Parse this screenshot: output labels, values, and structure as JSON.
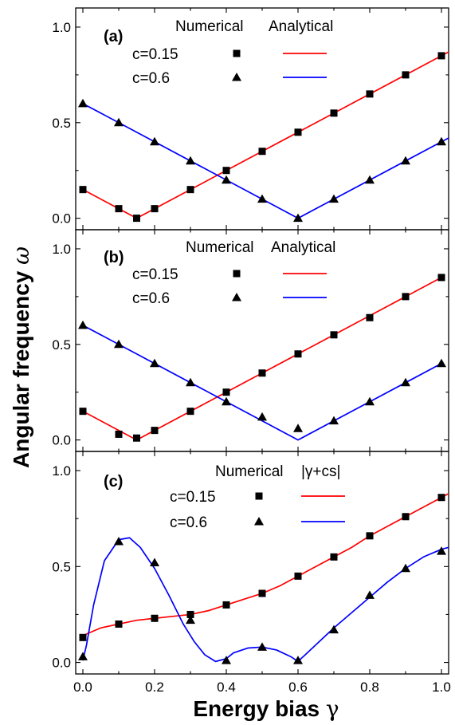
{
  "chart_data": [
    {
      "panel": "(a)",
      "type": "line",
      "x_range": [
        -0.02,
        1.02
      ],
      "ylim": [
        -0.06,
        1.1
      ],
      "yticks": [
        0.0,
        0.5,
        1.0
      ],
      "ytick_labels": [
        "0.0",
        "0.5",
        "1.0"
      ],
      "legend_header": [
        "Numerical",
        "Analytical"
      ],
      "series": [
        {
          "name": "c=0.15",
          "marker": "square",
          "color": "#ff0000",
          "numerical": {
            "x": [
              0.0,
              0.1,
              0.15,
              0.2,
              0.3,
              0.4,
              0.5,
              0.6,
              0.7,
              0.8,
              0.9,
              1.0
            ],
            "y": [
              0.15,
              0.05,
              0.0,
              0.05,
              0.15,
              0.25,
              0.35,
              0.45,
              0.55,
              0.65,
              0.75,
              0.85
            ]
          },
          "analytical": {
            "x": [
              0.0,
              0.15,
              1.02
            ],
            "y": [
              0.15,
              0.0,
              0.87
            ]
          }
        },
        {
          "name": "c=0.6",
          "marker": "triangle",
          "color": "#0000ff",
          "numerical": {
            "x": [
              0.0,
              0.1,
              0.2,
              0.3,
              0.4,
              0.5,
              0.6,
              0.7,
              0.8,
              0.9,
              1.0
            ],
            "y": [
              0.6,
              0.5,
              0.4,
              0.3,
              0.2,
              0.1,
              0.0,
              0.1,
              0.2,
              0.3,
              0.4
            ]
          },
          "analytical": {
            "x": [
              0.0,
              0.6,
              1.02
            ],
            "y": [
              0.6,
              0.0,
              0.42
            ]
          }
        }
      ]
    },
    {
      "panel": "(b)",
      "type": "line",
      "x_range": [
        -0.02,
        1.02
      ],
      "ylim": [
        -0.06,
        1.1
      ],
      "yticks": [
        0.0,
        0.5,
        1.0
      ],
      "ytick_labels": [
        "0.0",
        "0.5",
        "1.0"
      ],
      "legend_header": [
        "Numerical",
        "Analytical"
      ],
      "series": [
        {
          "name": "c=0.15",
          "marker": "square",
          "color": "#ff0000",
          "numerical": {
            "x": [
              0.0,
              0.1,
              0.15,
              0.2,
              0.3,
              0.4,
              0.5,
              0.6,
              0.7,
              0.8,
              0.9,
              1.0
            ],
            "y": [
              0.15,
              0.03,
              0.01,
              0.05,
              0.15,
              0.25,
              0.35,
              0.45,
              0.55,
              0.64,
              0.75,
              0.85
            ]
          },
          "analytical": {
            "x": [
              0.0,
              0.15,
              1.0
            ],
            "y": [
              0.15,
              0.0,
              0.85
            ]
          }
        },
        {
          "name": "c=0.6",
          "marker": "triangle",
          "color": "#0000ff",
          "numerical": {
            "x": [
              0.0,
              0.1,
              0.2,
              0.3,
              0.4,
              0.5,
              0.6,
              0.7,
              0.8,
              0.9,
              1.0
            ],
            "y": [
              0.6,
              0.5,
              0.4,
              0.3,
              0.2,
              0.12,
              0.06,
              0.1,
              0.2,
              0.3,
              0.4
            ]
          },
          "analytical": {
            "x": [
              0.0,
              0.6,
              1.0
            ],
            "y": [
              0.6,
              0.0,
              0.4
            ]
          }
        }
      ]
    },
    {
      "panel": "(c)",
      "type": "line",
      "x_range": [
        -0.02,
        1.02
      ],
      "ylim": [
        -0.06,
        1.1
      ],
      "yticks": [
        0.0,
        0.5,
        1.0
      ],
      "ytick_labels": [
        "0.0",
        "0.5",
        "1.0"
      ],
      "legend_header": [
        "Numerical",
        "|γ+cs|"
      ],
      "series": [
        {
          "name": "c=0.15",
          "marker": "square",
          "color": "#ff0000",
          "numerical": {
            "x": [
              0.0,
              0.1,
              0.2,
              0.3,
              0.4,
              0.5,
              0.6,
              0.7,
              0.8,
              0.9,
              1.0
            ],
            "y": [
              0.13,
              0.2,
              0.23,
              0.25,
              0.3,
              0.36,
              0.45,
              0.55,
              0.66,
              0.76,
              0.86
            ]
          },
          "analytical": {
            "x": [
              0.0,
              0.05,
              0.1,
              0.15,
              0.2,
              0.25,
              0.3,
              0.35,
              0.4,
              0.45,
              0.5,
              0.55,
              0.6,
              0.65,
              0.7,
              0.75,
              0.8,
              0.85,
              0.9,
              0.95,
              1.0,
              1.02
            ],
            "y": [
              0.14,
              0.18,
              0.2,
              0.22,
              0.23,
              0.24,
              0.25,
              0.27,
              0.3,
              0.33,
              0.36,
              0.4,
              0.45,
              0.5,
              0.55,
              0.6,
              0.66,
              0.71,
              0.76,
              0.81,
              0.86,
              0.88
            ]
          }
        },
        {
          "name": "c=0.6",
          "marker": "triangle",
          "color": "#0000ff",
          "numerical": {
            "x": [
              0.0,
              0.1,
              0.2,
              0.3,
              0.4,
              0.5,
              0.6,
              0.7,
              0.8,
              0.9,
              1.0
            ],
            "y": [
              0.03,
              0.63,
              0.52,
              0.22,
              0.01,
              0.08,
              0.01,
              0.17,
              0.35,
              0.49,
              0.58
            ]
          },
          "analytical": {
            "x": [
              0.0,
              0.01,
              0.03,
              0.06,
              0.1,
              0.13,
              0.16,
              0.2,
              0.24,
              0.28,
              0.31,
              0.34,
              0.37,
              0.4,
              0.42,
              0.46,
              0.5,
              0.54,
              0.58,
              0.6,
              0.62,
              0.66,
              0.7,
              0.75,
              0.8,
              0.85,
              0.9,
              0.95,
              1.0,
              1.02
            ],
            "y": [
              0.01,
              0.09,
              0.3,
              0.53,
              0.64,
              0.65,
              0.6,
              0.49,
              0.35,
              0.2,
              0.11,
              0.04,
              0.005,
              0.02,
              0.05,
              0.075,
              0.08,
              0.065,
              0.03,
              0.005,
              0.04,
              0.11,
              0.18,
              0.26,
              0.34,
              0.42,
              0.49,
              0.55,
              0.59,
              0.6
            ]
          }
        }
      ]
    }
  ],
  "x_tick_labels": [
    "0.0",
    "0.2",
    "0.4",
    "0.6",
    "0.8",
    "1.0"
  ],
  "xlabel_text": "Energy bias ",
  "xlabel_symbol": "γ",
  "ylabel_text": "Angular frequency ",
  "ylabel_symbol": "ω"
}
